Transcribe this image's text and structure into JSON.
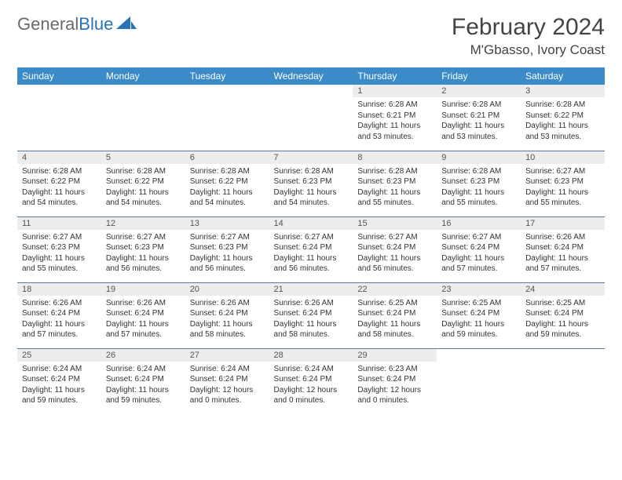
{
  "brand": {
    "word1": "General",
    "word2": "Blue"
  },
  "title": "February 2024",
  "location": "M'Gbasso, Ivory Coast",
  "colors": {
    "header_bg": "#3b8bc8",
    "header_fg": "#ffffff",
    "daynum_bg": "#ededed",
    "row_divider": "#5a7a99",
    "logo_gray": "#6a6a6a",
    "logo_blue": "#2a72b5"
  },
  "day_headers": [
    "Sunday",
    "Monday",
    "Tuesday",
    "Wednesday",
    "Thursday",
    "Friday",
    "Saturday"
  ],
  "weeks": [
    [
      {
        "empty": true
      },
      {
        "empty": true
      },
      {
        "empty": true
      },
      {
        "empty": true
      },
      {
        "n": "1",
        "sr": "Sunrise: 6:28 AM",
        "ss": "Sunset: 6:21 PM",
        "dl": "Daylight: 11 hours and 53 minutes."
      },
      {
        "n": "2",
        "sr": "Sunrise: 6:28 AM",
        "ss": "Sunset: 6:21 PM",
        "dl": "Daylight: 11 hours and 53 minutes."
      },
      {
        "n": "3",
        "sr": "Sunrise: 6:28 AM",
        "ss": "Sunset: 6:22 PM",
        "dl": "Daylight: 11 hours and 53 minutes."
      }
    ],
    [
      {
        "n": "4",
        "sr": "Sunrise: 6:28 AM",
        "ss": "Sunset: 6:22 PM",
        "dl": "Daylight: 11 hours and 54 minutes."
      },
      {
        "n": "5",
        "sr": "Sunrise: 6:28 AM",
        "ss": "Sunset: 6:22 PM",
        "dl": "Daylight: 11 hours and 54 minutes."
      },
      {
        "n": "6",
        "sr": "Sunrise: 6:28 AM",
        "ss": "Sunset: 6:22 PM",
        "dl": "Daylight: 11 hours and 54 minutes."
      },
      {
        "n": "7",
        "sr": "Sunrise: 6:28 AM",
        "ss": "Sunset: 6:23 PM",
        "dl": "Daylight: 11 hours and 54 minutes."
      },
      {
        "n": "8",
        "sr": "Sunrise: 6:28 AM",
        "ss": "Sunset: 6:23 PM",
        "dl": "Daylight: 11 hours and 55 minutes."
      },
      {
        "n": "9",
        "sr": "Sunrise: 6:28 AM",
        "ss": "Sunset: 6:23 PM",
        "dl": "Daylight: 11 hours and 55 minutes."
      },
      {
        "n": "10",
        "sr": "Sunrise: 6:27 AM",
        "ss": "Sunset: 6:23 PM",
        "dl": "Daylight: 11 hours and 55 minutes."
      }
    ],
    [
      {
        "n": "11",
        "sr": "Sunrise: 6:27 AM",
        "ss": "Sunset: 6:23 PM",
        "dl": "Daylight: 11 hours and 55 minutes."
      },
      {
        "n": "12",
        "sr": "Sunrise: 6:27 AM",
        "ss": "Sunset: 6:23 PM",
        "dl": "Daylight: 11 hours and 56 minutes."
      },
      {
        "n": "13",
        "sr": "Sunrise: 6:27 AM",
        "ss": "Sunset: 6:23 PM",
        "dl": "Daylight: 11 hours and 56 minutes."
      },
      {
        "n": "14",
        "sr": "Sunrise: 6:27 AM",
        "ss": "Sunset: 6:24 PM",
        "dl": "Daylight: 11 hours and 56 minutes."
      },
      {
        "n": "15",
        "sr": "Sunrise: 6:27 AM",
        "ss": "Sunset: 6:24 PM",
        "dl": "Daylight: 11 hours and 56 minutes."
      },
      {
        "n": "16",
        "sr": "Sunrise: 6:27 AM",
        "ss": "Sunset: 6:24 PM",
        "dl": "Daylight: 11 hours and 57 minutes."
      },
      {
        "n": "17",
        "sr": "Sunrise: 6:26 AM",
        "ss": "Sunset: 6:24 PM",
        "dl": "Daylight: 11 hours and 57 minutes."
      }
    ],
    [
      {
        "n": "18",
        "sr": "Sunrise: 6:26 AM",
        "ss": "Sunset: 6:24 PM",
        "dl": "Daylight: 11 hours and 57 minutes."
      },
      {
        "n": "19",
        "sr": "Sunrise: 6:26 AM",
        "ss": "Sunset: 6:24 PM",
        "dl": "Daylight: 11 hours and 57 minutes."
      },
      {
        "n": "20",
        "sr": "Sunrise: 6:26 AM",
        "ss": "Sunset: 6:24 PM",
        "dl": "Daylight: 11 hours and 58 minutes."
      },
      {
        "n": "21",
        "sr": "Sunrise: 6:26 AM",
        "ss": "Sunset: 6:24 PM",
        "dl": "Daylight: 11 hours and 58 minutes."
      },
      {
        "n": "22",
        "sr": "Sunrise: 6:25 AM",
        "ss": "Sunset: 6:24 PM",
        "dl": "Daylight: 11 hours and 58 minutes."
      },
      {
        "n": "23",
        "sr": "Sunrise: 6:25 AM",
        "ss": "Sunset: 6:24 PM",
        "dl": "Daylight: 11 hours and 59 minutes."
      },
      {
        "n": "24",
        "sr": "Sunrise: 6:25 AM",
        "ss": "Sunset: 6:24 PM",
        "dl": "Daylight: 11 hours and 59 minutes."
      }
    ],
    [
      {
        "n": "25",
        "sr": "Sunrise: 6:24 AM",
        "ss": "Sunset: 6:24 PM",
        "dl": "Daylight: 11 hours and 59 minutes."
      },
      {
        "n": "26",
        "sr": "Sunrise: 6:24 AM",
        "ss": "Sunset: 6:24 PM",
        "dl": "Daylight: 11 hours and 59 minutes."
      },
      {
        "n": "27",
        "sr": "Sunrise: 6:24 AM",
        "ss": "Sunset: 6:24 PM",
        "dl": "Daylight: 12 hours and 0 minutes."
      },
      {
        "n": "28",
        "sr": "Sunrise: 6:24 AM",
        "ss": "Sunset: 6:24 PM",
        "dl": "Daylight: 12 hours and 0 minutes."
      },
      {
        "n": "29",
        "sr": "Sunrise: 6:23 AM",
        "ss": "Sunset: 6:24 PM",
        "dl": "Daylight: 12 hours and 0 minutes."
      },
      {
        "empty": true
      },
      {
        "empty": true
      }
    ]
  ]
}
